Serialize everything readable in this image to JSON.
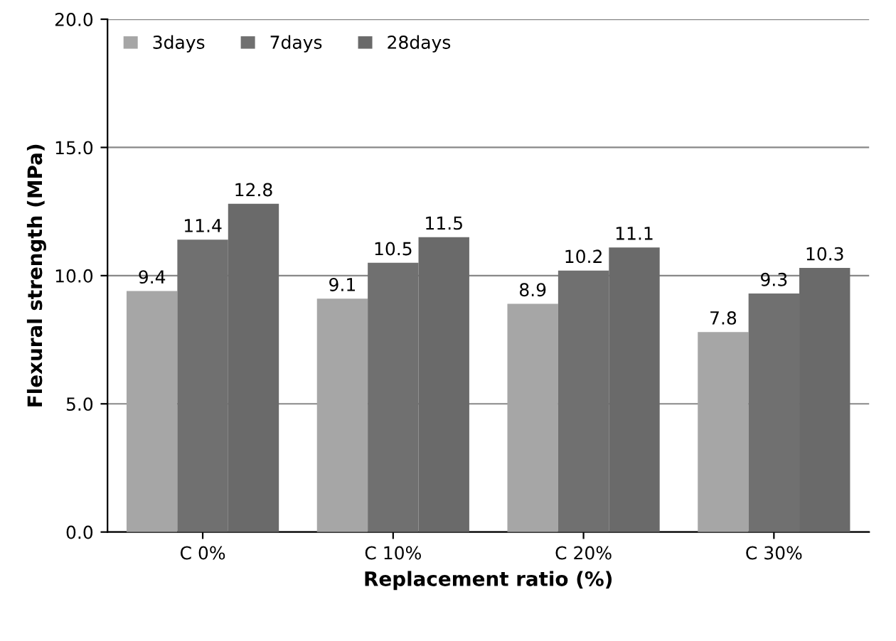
{
  "chart_data": {
    "type": "bar",
    "xlabel": "Replacement ratio (%)",
    "ylabel": "Flexural strength (MPa)",
    "categories": [
      "C 0%",
      "C 10%",
      "C 20%",
      "C 30%"
    ],
    "series": [
      {
        "name": "3days",
        "color": "#a6a6a6",
        "values": [
          9.4,
          9.1,
          8.9,
          7.8
        ]
      },
      {
        "name": "7days",
        "color": "#707070",
        "values": [
          11.4,
          10.5,
          10.2,
          9.3
        ]
      },
      {
        "name": "28days",
        "color": "#6a6a6a",
        "values": [
          12.8,
          11.5,
          11.1,
          10.3
        ]
      }
    ],
    "ylim": [
      0,
      20
    ],
    "yticks": [
      {
        "value": 0,
        "label": "0.0"
      },
      {
        "value": 5,
        "label": "5.0"
      },
      {
        "value": 10,
        "label": "10.0"
      },
      {
        "value": 15,
        "label": "15.0"
      },
      {
        "value": 20,
        "label": "20.0"
      }
    ],
    "grid": "y",
    "legend": "top left",
    "data_labels": true
  }
}
